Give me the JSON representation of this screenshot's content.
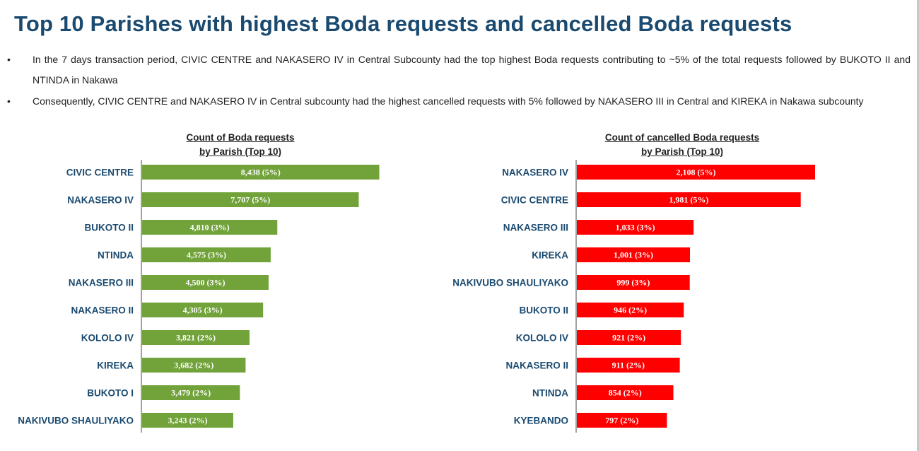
{
  "title": "Top 10 Parishes with highest Boda requests and cancelled Boda requests",
  "bullets": [
    "In the 7 days transaction period, CIVIC CENTRE and NAKASERO IV in Central Subcounty had the top highest Boda requests contributing to ~5% of the total requests followed by BUKOTO II and NTINDA in Nakawa",
    "Consequently, CIVIC CENTRE and NAKASERO IV in Central subcounty had the highest cancelled requests with 5% followed by NAKASERO III in Central and KIREKA in Nakawa subcounty"
  ],
  "bullet_symbol": "•",
  "colors": {
    "left_bars": "#72a33b",
    "right_bars": "#ff0000",
    "labels": "#1a4a70"
  },
  "chart_data": [
    {
      "type": "bar",
      "orientation": "horizontal",
      "title": "Count of Boda requests",
      "subtitle": "by Parish (Top 10)",
      "categories": [
        "CIVIC CENTRE",
        "NAKASERO IV",
        "BUKOTO II",
        "NTINDA",
        "NAKASERO III",
        "NAKASERO II",
        "KOLOLO IV",
        "KIREKA",
        "BUKOTO I",
        "NAKIVUBO SHAULIYAKO"
      ],
      "values": [
        8438,
        7707,
        4810,
        4575,
        4500,
        4305,
        3821,
        3682,
        3479,
        3243
      ],
      "data_labels": [
        "8,438 (5%)",
        "7,707 (5%)",
        "4,810 (3%)",
        "4,575 (3%)",
        "4,500 (3%)",
        "4,305 (3%)",
        "3,821 (2%)",
        "3,682 (2%)",
        "3,479 (2%)",
        "3,243 (2%)"
      ],
      "xlim": [
        0,
        8500
      ]
    },
    {
      "type": "bar",
      "orientation": "horizontal",
      "title": "Count of cancelled Boda requests",
      "subtitle": "by Parish (Top 10)",
      "categories": [
        "NAKASERO IV",
        "CIVIC CENTRE",
        "NAKASERO III",
        "KIREKA",
        "NAKIVUBO SHAULIYAKO",
        "BUKOTO II",
        "KOLOLO IV",
        "NAKASERO II",
        "NTINDA",
        "KYEBANDO"
      ],
      "values": [
        2108,
        1981,
        1033,
        1001,
        999,
        946,
        921,
        911,
        854,
        797
      ],
      "data_labels": [
        "2,108 (5%)",
        "1,981 (5%)",
        "1,033 (3%)",
        "1,001 (3%)",
        "999 (3%)",
        "946 (2%)",
        "921 (2%)",
        "911 (2%)",
        "854 (2%)",
        "797 (2%)"
      ],
      "xlim": [
        0,
        2108
      ]
    }
  ]
}
